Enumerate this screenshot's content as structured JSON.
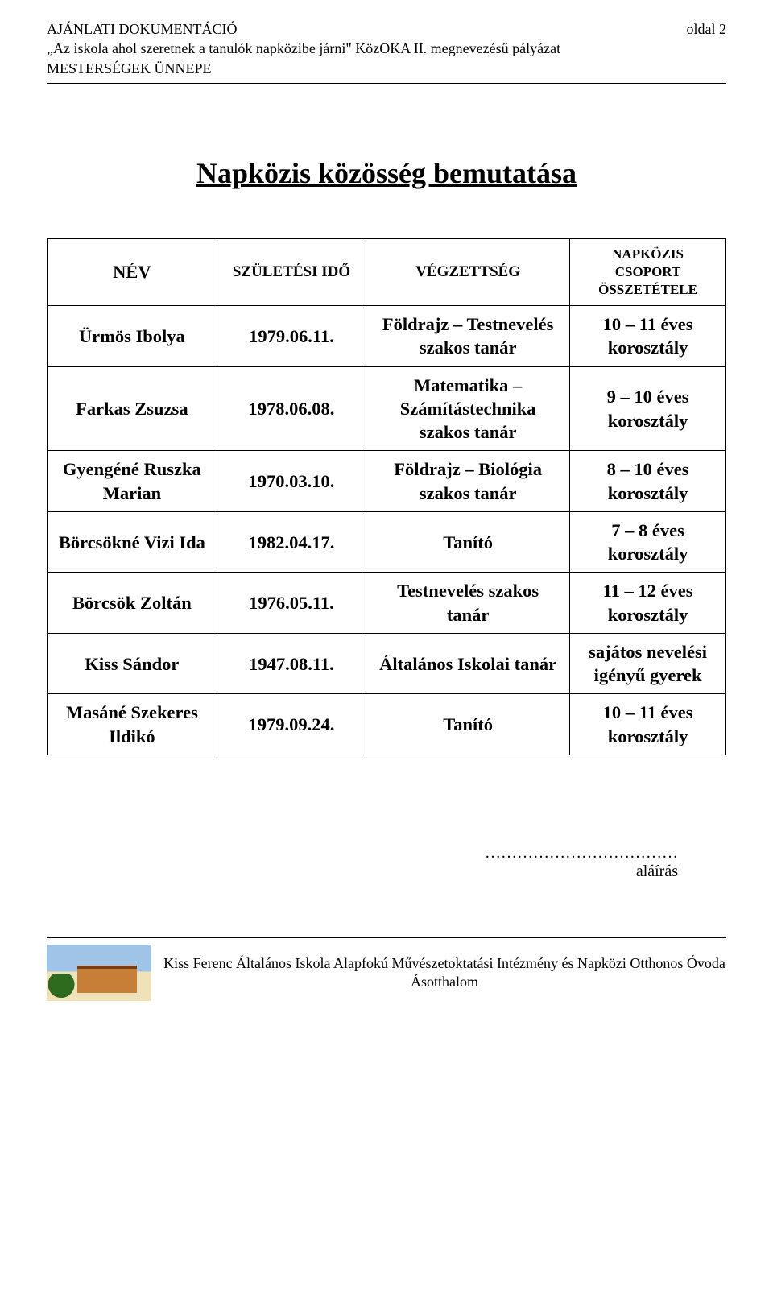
{
  "header": {
    "line1": "AJÁNLATI DOKUMENTÁCIÓ",
    "line2": "„Az iskola ahol szeretnek a tanulók napközibe járni\" KözOKA II. megnevezésű pályázat",
    "line3": "MESTERSÉGEK ÜNNEPE",
    "page_label": "oldal 2"
  },
  "title": "Napközis közösség bemutatása",
  "table": {
    "columns": {
      "nev": "NÉV",
      "ido": "SZÜLETÉSI IDŐ",
      "vegz": "VÉGZETTSÉG",
      "csop": "NAPKÖZIS CSOPORT ÖSSZETÉTELE"
    },
    "rows": [
      {
        "nev": "Ürmös Ibolya",
        "ido": "1979.06.11.",
        "vegz": "Földrajz – Testnevelés szakos tanár",
        "csop": "10 – 11 éves korosztály"
      },
      {
        "nev": "Farkas Zsuzsa",
        "ido": "1978.06.08.",
        "vegz": "Matematika – Számítástechnika szakos tanár",
        "csop": "9 – 10 éves korosztály"
      },
      {
        "nev": "Gyengéné Ruszka Marian",
        "ido": "1970.03.10.",
        "vegz": "Földrajz – Biológia szakos tanár",
        "csop": "8 – 10 éves korosztály"
      },
      {
        "nev": "Börcsökné Vizi Ida",
        "ido": "1982.04.17.",
        "vegz": "Tanító",
        "csop": "7 – 8   éves korosztály"
      },
      {
        "nev": "Börcsök Zoltán",
        "ido": "1976.05.11.",
        "vegz": "Testnevelés szakos tanár",
        "csop": "11 – 12  éves korosztály"
      },
      {
        "nev": "Kiss Sándor",
        "ido": "1947.08.11.",
        "vegz": "Általános Iskolai tanár",
        "csop": "sajátos nevelési igényű gyerek"
      },
      {
        "nev": "Masáné Szekeres Ildikó",
        "ido": "1979.09.24.",
        "vegz": "Tanító",
        "csop": "10 – 11 éves korosztály"
      }
    ]
  },
  "signature": {
    "dots": "………………………………",
    "label": "aláírás"
  },
  "footer": {
    "line1": "Kiss Ferenc Általános Iskola Alapfokú Művészetoktatási Intézmény és Napközi Otthonos Óvoda",
    "line2": "Ásotthalom"
  }
}
